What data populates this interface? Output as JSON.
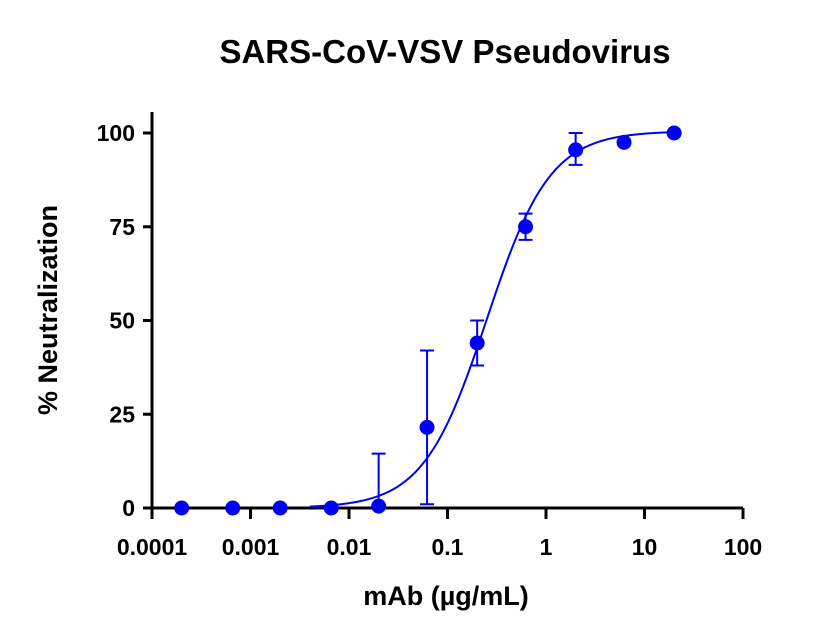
{
  "chart_data": {
    "type": "scatter",
    "title": "SARS-CoV-VSV Pseudovirus",
    "xlabel": "mAb (µg/mL)",
    "ylabel": "% Neutralization",
    "x_scale": "log",
    "xlim": [
      0.0001,
      100
    ],
    "ylim": [
      0,
      100
    ],
    "x_ticks": [
      0.0001,
      0.001,
      0.01,
      0.1,
      1,
      10,
      100
    ],
    "x_tick_labels": [
      "0.0001",
      "0.001",
      "0.01",
      "0.1",
      "1",
      "10",
      "100"
    ],
    "y_ticks": [
      0,
      25,
      50,
      75,
      100
    ],
    "y_tick_labels": [
      "0",
      "25",
      "50",
      "75",
      "100"
    ],
    "grid": false,
    "legend": "none",
    "series": [
      {
        "color": "#0000f5",
        "points": [
          {
            "x": 0.0002,
            "y": 0,
            "err_low": 0,
            "err_high": 0
          },
          {
            "x": 0.00066,
            "y": 0,
            "err_low": 0,
            "err_high": 0
          },
          {
            "x": 0.002,
            "y": 0,
            "err_low": 0,
            "err_high": 0
          },
          {
            "x": 0.0066,
            "y": 0,
            "err_low": 0,
            "err_high": 0
          },
          {
            "x": 0.02,
            "y": 0.5,
            "err_low": 0,
            "err_high": 14.5
          },
          {
            "x": 0.062,
            "y": 21.5,
            "err_low": 1,
            "err_high": 42
          },
          {
            "x": 0.2,
            "y": 44,
            "err_low": 38,
            "err_high": 50
          },
          {
            "x": 0.62,
            "y": 75,
            "err_low": 71.5,
            "err_high": 78.5
          },
          {
            "x": 2,
            "y": 95.5,
            "err_low": 91.5,
            "err_high": 100
          },
          {
            "x": 6.2,
            "y": 97.5,
            "err_low": 97.5,
            "err_high": 97.5
          },
          {
            "x": 20,
            "y": 100,
            "err_low": 100,
            "err_high": 100
          }
        ]
      }
    ],
    "fit_curve": {
      "model": "sigmoidal 4PL",
      "bottom": 0,
      "top": 100.5,
      "ec50": 0.25,
      "hill": 1.35,
      "x_range": [
        0.004,
        20
      ]
    }
  }
}
